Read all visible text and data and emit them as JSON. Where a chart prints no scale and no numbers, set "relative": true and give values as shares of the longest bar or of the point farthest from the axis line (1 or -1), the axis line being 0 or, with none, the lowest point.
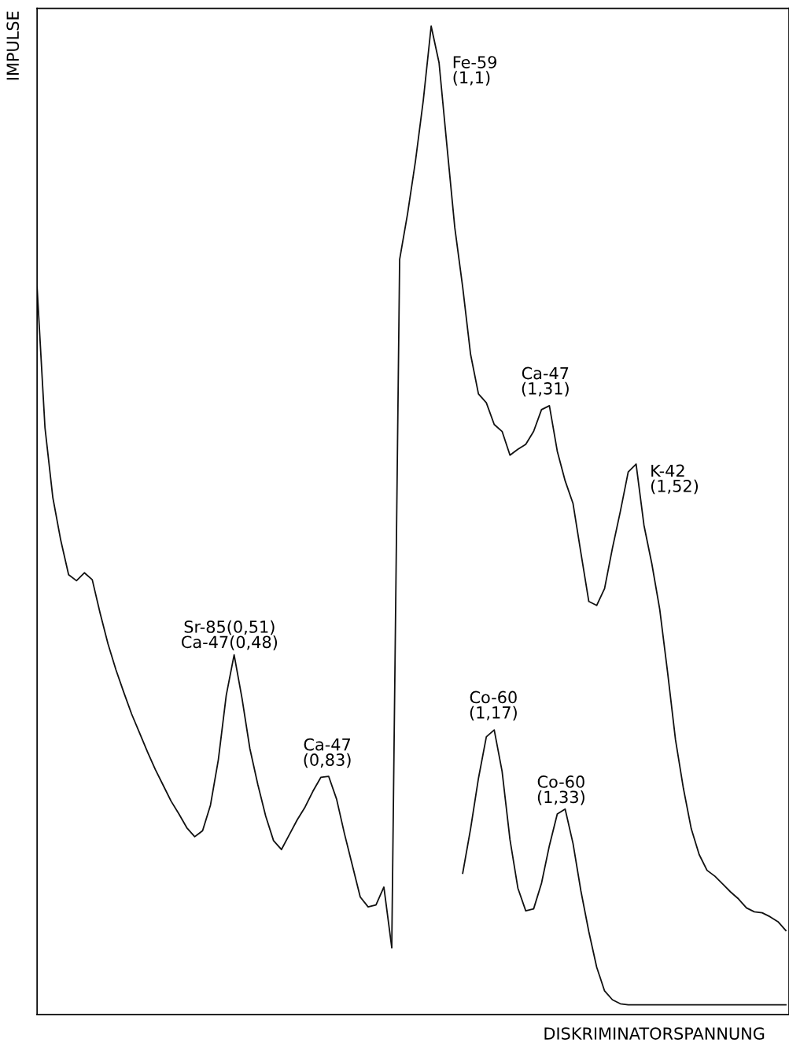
{
  "chart_data": {
    "type": "line",
    "relative": true,
    "xlabel": "DISKRIMINATORSPANNUNG",
    "ylabel": "IMPULSE",
    "legend": false,
    "marker": "none",
    "line_style": "solid",
    "categories": [
      null,
      null,
      null,
      null,
      null,
      null,
      null,
      null,
      null,
      null,
      null,
      null,
      null,
      null,
      null,
      null,
      null,
      null,
      null,
      null,
      null,
      null,
      null,
      null,
      null,
      null,
      null,
      null,
      null,
      null,
      null,
      null,
      null,
      null,
      null,
      null,
      null,
      null,
      null,
      null,
      null,
      null,
      null,
      null,
      null,
      null,
      null,
      null,
      null,
      null,
      null,
      null,
      null,
      null,
      null,
      null,
      null,
      null,
      null,
      null,
      null,
      null,
      null,
      null,
      null,
      null,
      null,
      null,
      null,
      null,
      null,
      null,
      null,
      null,
      null,
      null,
      null,
      null,
      null,
      null,
      null,
      null,
      null,
      null,
      null,
      null,
      null,
      null,
      null,
      null,
      null,
      null,
      null,
      null,
      null,
      null
    ],
    "series": [
      {
        "color": "#111111",
        "values": [
          0.736,
          0.594,
          0.523,
          0.48,
          0.445,
          0.439,
          0.447,
          0.44,
          0.406,
          0.375,
          0.349,
          0.326,
          0.304,
          0.285,
          0.266,
          0.248,
          0.232,
          0.216,
          0.203,
          0.189,
          0.18,
          0.186,
          0.212,
          0.258,
          0.323,
          0.364,
          0.32,
          0.269,
          0.233,
          0.201,
          0.176,
          0.167,
          0.182,
          0.197,
          0.21,
          0.226,
          0.24,
          0.241,
          0.218,
          0.183,
          0.151,
          0.119,
          0.109,
          0.111,
          0.129,
          0.068,
          null,
          null,
          null,
          null,
          null,
          null,
          null,
          null,
          null,
          null,
          null,
          null,
          null,
          null,
          null,
          null,
          null,
          null,
          null,
          null,
          null,
          null,
          null,
          null,
          null,
          null,
          null,
          null,
          null,
          null,
          null,
          null,
          null,
          null,
          null,
          null,
          null,
          null,
          null,
          null,
          null,
          null,
          null,
          null,
          null,
          null,
          null,
          null,
          null,
          null
        ]
      },
      {
        "color": "#111111",
        "values": [
          null,
          null,
          null,
          null,
          null,
          null,
          null,
          null,
          null,
          null,
          null,
          null,
          null,
          null,
          null,
          null,
          null,
          null,
          null,
          null,
          null,
          null,
          null,
          null,
          null,
          null,
          null,
          null,
          null,
          null,
          null,
          null,
          null,
          null,
          null,
          null,
          null,
          null,
          null,
          null,
          null,
          null,
          null,
          null,
          null,
          0.068,
          0.764,
          0.81,
          0.863,
          0.925,
          1.0,
          0.963,
          0.879,
          0.796,
          0.736,
          0.668,
          0.628,
          0.619,
          0.597,
          0.59,
          0.566,
          0.572,
          0.577,
          0.59,
          0.612,
          0.616,
          0.57,
          0.54,
          0.517,
          0.467,
          0.418,
          0.414,
          0.431,
          0.472,
          0.509,
          0.549,
          0.557,
          0.495,
          0.456,
          0.41,
          0.346,
          0.278,
          0.229,
          0.188,
          0.162,
          0.146,
          0.14,
          0.132,
          0.124,
          0.117,
          0.108,
          0.104,
          0.103,
          0.099,
          0.094,
          0.085
        ]
      },
      {
        "color": "#111111",
        "values": [
          null,
          null,
          null,
          null,
          null,
          null,
          null,
          null,
          null,
          null,
          null,
          null,
          null,
          null,
          null,
          null,
          null,
          null,
          null,
          null,
          null,
          null,
          null,
          null,
          null,
          null,
          null,
          null,
          null,
          null,
          null,
          null,
          null,
          null,
          null,
          null,
          null,
          null,
          null,
          null,
          null,
          null,
          null,
          null,
          null,
          null,
          null,
          null,
          null,
          null,
          null,
          null,
          null,
          null,
          0.143,
          0.188,
          0.239,
          0.281,
          0.288,
          0.246,
          0.177,
          0.128,
          0.105,
          0.107,
          0.133,
          0.171,
          0.203,
          0.208,
          0.173,
          0.125,
          0.084,
          0.048,
          0.024,
          0.015,
          0.011,
          0.01,
          0.01,
          0.01,
          0.01,
          0.01,
          0.01,
          0.01,
          0.01,
          0.01,
          0.01,
          0.01,
          0.01,
          0.01,
          0.01,
          0.01,
          0.01,
          0.01,
          0.01,
          0.01,
          0.01,
          0.01
        ]
      }
    ],
    "annotations": [
      "Fe-59\n(1,1)",
      "Ca-47\n(1,31)",
      "K-42\n(1,52)",
      "Sr-85(0,51)\nCa-47(0,48)",
      "Co-60\n(1,17)",
      "Ca-47\n(0,83)",
      "Co-60\n(1,33)"
    ]
  }
}
